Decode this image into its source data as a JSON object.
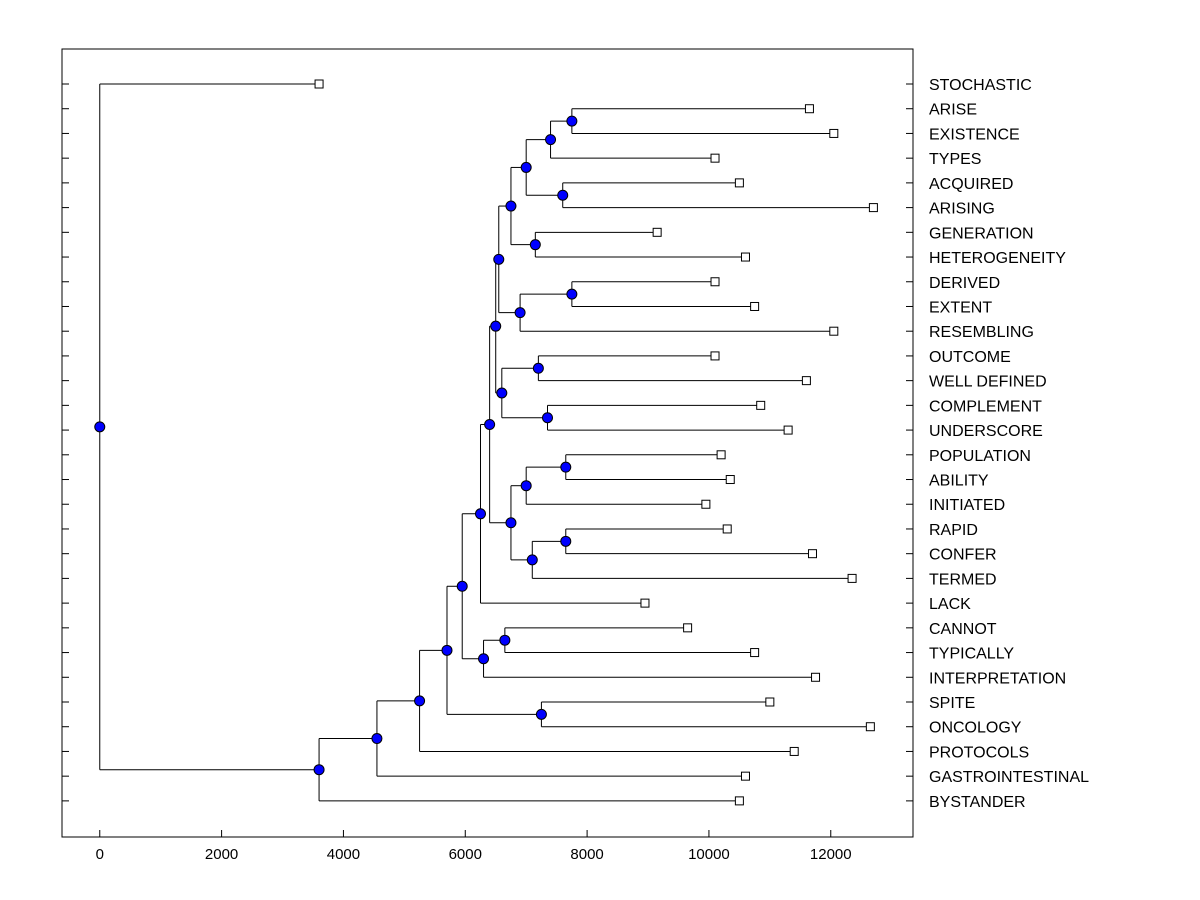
{
  "chart_data": {
    "type": "dendrogram",
    "title": "",
    "xlabel": "",
    "ylabel": "",
    "xlim": [
      -620,
      13350
    ],
    "xticks": [
      0,
      2000,
      4000,
      6000,
      8000,
      10000,
      12000
    ],
    "xtick_labels": [
      "0",
      "2000",
      "4000",
      "6000",
      "8000",
      "10000",
      "12000"
    ],
    "grid": false,
    "leaves": [
      {
        "label": "STOCHASTIC",
        "value": 3600
      },
      {
        "label": "ARISE",
        "value": 11650
      },
      {
        "label": "EXISTENCE",
        "value": 12050
      },
      {
        "label": "TYPES",
        "value": 10100
      },
      {
        "label": "ACQUIRED",
        "value": 10500
      },
      {
        "label": "ARISING",
        "value": 12700
      },
      {
        "label": "GENERATION",
        "value": 9150
      },
      {
        "label": "HETEROGENEITY",
        "value": 10600
      },
      {
        "label": "DERIVED",
        "value": 10100
      },
      {
        "label": "EXTENT",
        "value": 10750
      },
      {
        "label": "RESEMBLING",
        "value": 12050
      },
      {
        "label": "OUTCOME",
        "value": 10100
      },
      {
        "label": "WELL DEFINED",
        "value": 11600
      },
      {
        "label": "COMPLEMENT",
        "value": 10850
      },
      {
        "label": "UNDERSCORE",
        "value": 11300
      },
      {
        "label": "POPULATION",
        "value": 10200
      },
      {
        "label": "ABILITY",
        "value": 10350
      },
      {
        "label": "INITIATED",
        "value": 9950
      },
      {
        "label": "RAPID",
        "value": 10300
      },
      {
        "label": "CONFER",
        "value": 11700
      },
      {
        "label": "TERMED",
        "value": 12350
      },
      {
        "label": "LACK",
        "value": 8950
      },
      {
        "label": "CANNOT",
        "value": 9650
      },
      {
        "label": "TYPICALLY",
        "value": 10750
      },
      {
        "label": "INTERPRETATION",
        "value": 11750
      },
      {
        "label": "SPITE",
        "value": 11000
      },
      {
        "label": "ONCOLOGY",
        "value": 12650
      },
      {
        "label": "PROTOCOLS",
        "value": 11400
      },
      {
        "label": "GASTROINTESTINAL",
        "value": 10600
      },
      {
        "label": "BYSTANDER",
        "value": 10500
      }
    ],
    "merges": [
      {
        "id": "a",
        "value": 7750,
        "children": [
          "L1",
          "L2"
        ]
      },
      {
        "id": "b",
        "value": 7400,
        "children": [
          "a",
          "L3"
        ]
      },
      {
        "id": "c",
        "value": 7600,
        "children": [
          "L4",
          "L5"
        ]
      },
      {
        "id": "d",
        "value": 7000,
        "children": [
          "b",
          "c"
        ]
      },
      {
        "id": "e",
        "value": 7150,
        "children": [
          "L6",
          "L7"
        ]
      },
      {
        "id": "f",
        "value": 6750,
        "children": [
          "d",
          "e"
        ]
      },
      {
        "id": "g",
        "value": 7750,
        "children": [
          "L8",
          "L9"
        ]
      },
      {
        "id": "h",
        "value": 6900,
        "children": [
          "g",
          "L10"
        ]
      },
      {
        "id": "i",
        "value": 6550,
        "children": [
          "f",
          "h"
        ]
      },
      {
        "id": "j",
        "value": 7200,
        "children": [
          "L11",
          "L12"
        ]
      },
      {
        "id": "k",
        "value": 7350,
        "children": [
          "L13",
          "L14"
        ]
      },
      {
        "id": "l",
        "value": 6600,
        "children": [
          "j",
          "k"
        ]
      },
      {
        "id": "m",
        "value": 6500,
        "children": [
          "i",
          "l"
        ]
      },
      {
        "id": "n",
        "value": 7650,
        "children": [
          "L15",
          "L16"
        ]
      },
      {
        "id": "o",
        "value": 7000,
        "children": [
          "n",
          "L17"
        ]
      },
      {
        "id": "p",
        "value": 7650,
        "children": [
          "L18",
          "L19"
        ]
      },
      {
        "id": "q",
        "value": 7100,
        "children": [
          "p",
          "L20"
        ]
      },
      {
        "id": "r",
        "value": 6750,
        "children": [
          "o",
          "q"
        ]
      },
      {
        "id": "s",
        "value": 6400,
        "children": [
          "m",
          "r"
        ]
      },
      {
        "id": "t",
        "value": 6250,
        "children": [
          "s",
          "L21"
        ]
      },
      {
        "id": "u",
        "value": 6650,
        "children": [
          "L22",
          "L23"
        ]
      },
      {
        "id": "v",
        "value": 6300,
        "children": [
          "u",
          "L24"
        ]
      },
      {
        "id": "w",
        "value": 5950,
        "children": [
          "t",
          "v"
        ]
      },
      {
        "id": "x",
        "value": 7250,
        "children": [
          "L25",
          "L26"
        ]
      },
      {
        "id": "y",
        "value": 5700,
        "children": [
          "w",
          "x"
        ]
      },
      {
        "id": "z",
        "value": 5250,
        "children": [
          "y",
          "L27"
        ]
      },
      {
        "id": "aa",
        "value": 4550,
        "children": [
          "z",
          "L28"
        ]
      },
      {
        "id": "bb",
        "value": 3600,
        "children": [
          "aa",
          "L29"
        ]
      },
      {
        "id": "root",
        "value": 0,
        "children": [
          "L0",
          "bb"
        ]
      }
    ],
    "colors": {
      "node_fill": "#0000ff",
      "leaf_fill": "#ffffff",
      "line": "#000000"
    }
  }
}
